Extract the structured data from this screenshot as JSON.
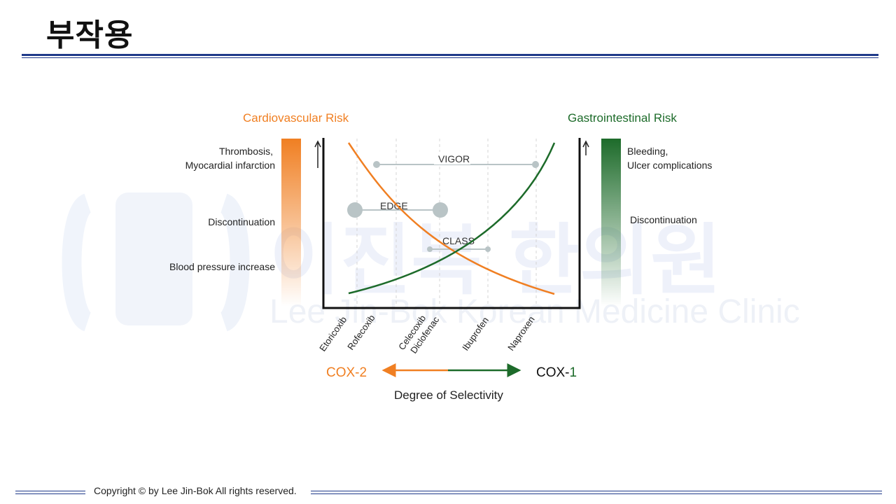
{
  "page": {
    "title": "부작용",
    "copyright": "Copyright © by Lee Jin-Bok All rights reserved."
  },
  "watermark": {
    "korean": "이진복 한의원",
    "english": "Lee Jin-Bok Korean Medicine Clinic"
  },
  "diagram": {
    "cv_risk_title": "Cardiovascular Risk",
    "gi_risk_title": "Gastrointestinal Risk",
    "cv_labels": [
      "Thrombosis,",
      "Myocardial infarction",
      "Discontinuation",
      "Blood pressure increase"
    ],
    "gi_labels": [
      "Bleeding,",
      "Ulcer complications",
      "Discontinuation"
    ],
    "drugs": [
      "Etoricoxib",
      "Rofecoxib",
      "Celecoxib",
      "Diclofenac",
      "Ibuprofen",
      "Naproxen"
    ],
    "trials": [
      "VIGOR",
      "EDGE",
      "CLASS"
    ],
    "cox2_label": "COX-2",
    "cox1_prefix": "COX-",
    "cox1_suffix": "1",
    "xlabel": "Degree of Selectivity",
    "colors": {
      "orange": "#f07f22",
      "green": "#1d6b2a",
      "gray": "#b9c4c6"
    }
  }
}
